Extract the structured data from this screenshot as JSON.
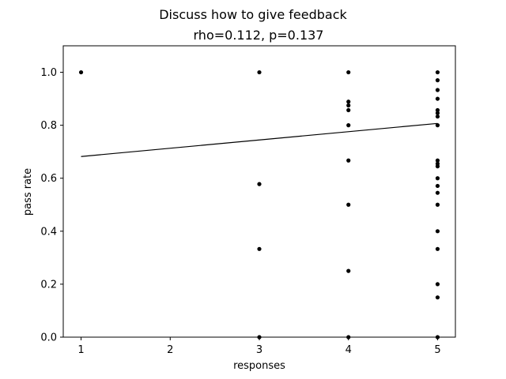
{
  "chart_data": {
    "type": "scatter",
    "title": "Discuss how to give feedback",
    "subtitle": "rho=0.112, p=0.137",
    "xlabel": "responses",
    "ylabel": "pass rate",
    "xlim": [
      0.8,
      5.2
    ],
    "ylim": [
      0.0,
      1.1
    ],
    "xticks": [
      "1",
      "2",
      "3",
      "4",
      "5"
    ],
    "yticks": [
      "0.0",
      "0.2",
      "0.4",
      "0.6",
      "0.8",
      "1.0"
    ],
    "grid": false,
    "legend": "none",
    "colors": {
      "points": "#000000",
      "trend_line": "#000000",
      "axes": "#000000"
    },
    "points": [
      {
        "x": 1,
        "y": 1.0
      },
      {
        "x": 3,
        "y": 1.0
      },
      {
        "x": 3,
        "y": 0.578
      },
      {
        "x": 3,
        "y": 0.333
      },
      {
        "x": 3,
        "y": 0.0
      },
      {
        "x": 4,
        "y": 1.0
      },
      {
        "x": 4,
        "y": 0.889
      },
      {
        "x": 4,
        "y": 0.875
      },
      {
        "x": 4,
        "y": 0.857
      },
      {
        "x": 4,
        "y": 0.8
      },
      {
        "x": 4,
        "y": 0.667
      },
      {
        "x": 4,
        "y": 0.5
      },
      {
        "x": 4,
        "y": 0.25
      },
      {
        "x": 4,
        "y": 0.0
      },
      {
        "x": 5,
        "y": 1.0
      },
      {
        "x": 5,
        "y": 0.97
      },
      {
        "x": 5,
        "y": 0.933
      },
      {
        "x": 5,
        "y": 0.9
      },
      {
        "x": 5,
        "y": 0.857
      },
      {
        "x": 5,
        "y": 0.846
      },
      {
        "x": 5,
        "y": 0.833
      },
      {
        "x": 5,
        "y": 0.8
      },
      {
        "x": 5,
        "y": 0.667
      },
      {
        "x": 5,
        "y": 0.655
      },
      {
        "x": 5,
        "y": 0.645
      },
      {
        "x": 5,
        "y": 0.6
      },
      {
        "x": 5,
        "y": 0.571
      },
      {
        "x": 5,
        "y": 0.545
      },
      {
        "x": 5,
        "y": 0.5
      },
      {
        "x": 5,
        "y": 0.4
      },
      {
        "x": 5,
        "y": 0.333
      },
      {
        "x": 5,
        "y": 0.2
      },
      {
        "x": 5,
        "y": 0.15
      },
      {
        "x": 5,
        "y": 0.0
      }
    ],
    "trend_line": {
      "x": [
        1,
        5
      ],
      "y": [
        0.682,
        0.807
      ]
    }
  }
}
